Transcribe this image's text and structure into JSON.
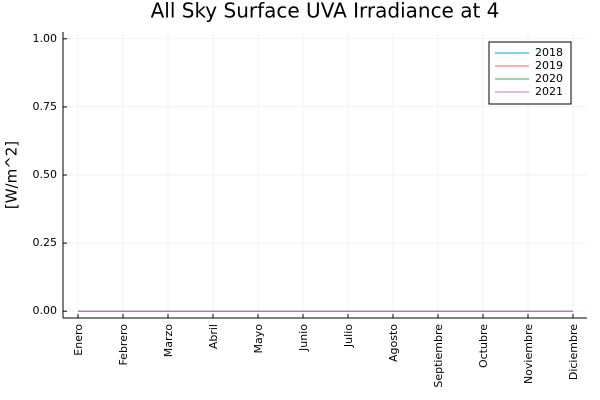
{
  "chart_data": {
    "type": "line",
    "title": "All Sky Surface UVA Irradiance at 4",
    "y_label": "[W/m^2]",
    "categories": [
      "Enero",
      "Febrero",
      "Marzo",
      "Abril",
      "Mayo",
      "Junio",
      "Julio",
      "Agosto",
      "Septiembre",
      "Octubre",
      "Noviembre",
      "Diciembre"
    ],
    "series": [
      {
        "name": "2018",
        "color": "#009afa",
        "values": [
          0,
          0,
          0,
          0,
          0,
          0,
          0,
          0,
          0,
          0,
          0,
          0
        ]
      },
      {
        "name": "2019",
        "color": "#e36f47",
        "values": [
          0,
          0,
          0,
          0,
          0,
          0,
          0,
          0,
          0,
          0,
          0,
          0
        ]
      },
      {
        "name": "2020",
        "color": "#3ea44e",
        "values": [
          0,
          0,
          0,
          0,
          0,
          0,
          0,
          0,
          0,
          0,
          0,
          0
        ]
      },
      {
        "name": "2021",
        "color": "#c271d2",
        "values": [
          0,
          0,
          0,
          0,
          0,
          0,
          0,
          0,
          0,
          0,
          0,
          0
        ]
      }
    ],
    "ylim": [
      -0.025,
      1.025
    ],
    "yticks": [
      {
        "value": 0,
        "label": "0.00"
      },
      {
        "value": 0.25,
        "label": "0.25"
      },
      {
        "value": 0.5,
        "label": "0.50"
      },
      {
        "value": 0.75,
        "label": "0.75"
      },
      {
        "value": 1,
        "label": "1.00"
      }
    ],
    "grid": true,
    "legend_position": "top-right"
  }
}
